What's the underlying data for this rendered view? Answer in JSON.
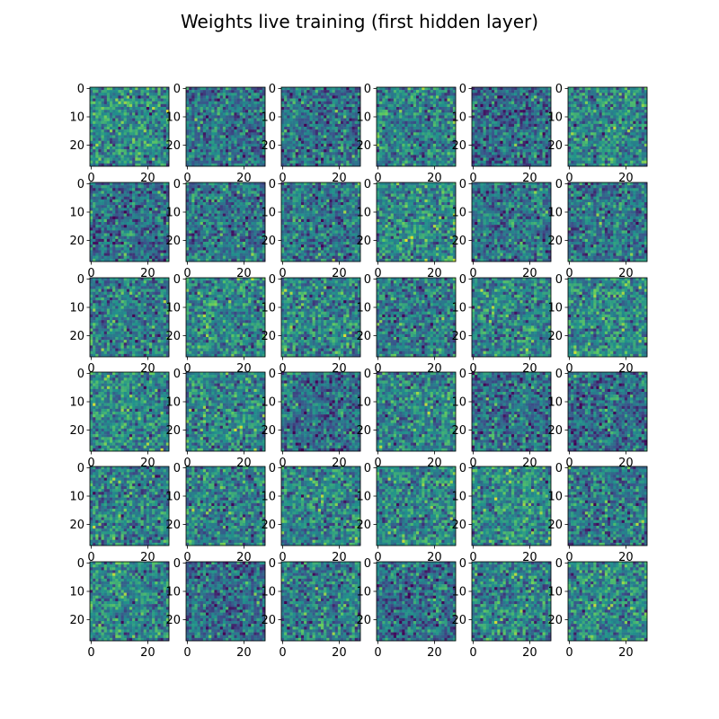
{
  "figure": {
    "title": "Weights live training (first hidden layer)"
  },
  "chart_data": {
    "type": "heatmap",
    "title": "Weights live training (first hidden layer)",
    "grid_rows": 6,
    "grid_cols": 6,
    "image_size": 28,
    "colormap": "viridis",
    "colormap_stops": [
      "#440154",
      "#3b528b",
      "#21918c",
      "#5ec962",
      "#fde725"
    ],
    "xticks": [
      "0",
      "20"
    ],
    "yticks": [
      "0",
      "10",
      "20"
    ],
    "xtick_values": [
      0,
      20
    ],
    "ytick_values": [
      0,
      10,
      20
    ],
    "xlim": [
      -0.5,
      27.5
    ],
    "ylim": [
      27.5,
      -0.5
    ],
    "grid": false
  }
}
